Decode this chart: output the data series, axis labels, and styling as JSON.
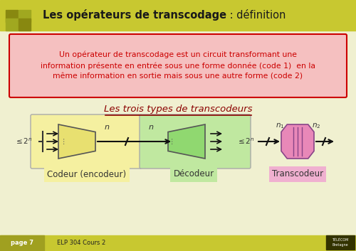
{
  "bg_color": "#f0f0d0",
  "header_color": "#c8c830",
  "header_text_bold": "Les opérateurs de transcodage",
  "header_text_normal": " : définition",
  "pink_box_color": "#f5c0c0",
  "pink_box_border": "#cc0000",
  "pink_box_text": "Un opérateur de transcodage est un circuit transformant une\ninformation présente en entrée sous une forme donnée (code 1)  en la\nmême information en sortie mais sous une autre forme (code 2)",
  "pink_box_text_color": "#cc0000",
  "subtitle_text": "Les trois types de transcodeurs",
  "subtitle_color": "#8b0000",
  "encoder_box_color": "#f5f0a0",
  "decoder_box_color": "#c0e8a0",
  "transcodeur_box_color": "#f0b0d0",
  "label_encoder": "Codeur (encodeur)",
  "label_decoder": "Décodeur",
  "label_transcodeur": "Transcodeur",
  "footer_color": "#c8c830",
  "footer_left_dark": "#a0a020",
  "footer_text_color": "#000000"
}
